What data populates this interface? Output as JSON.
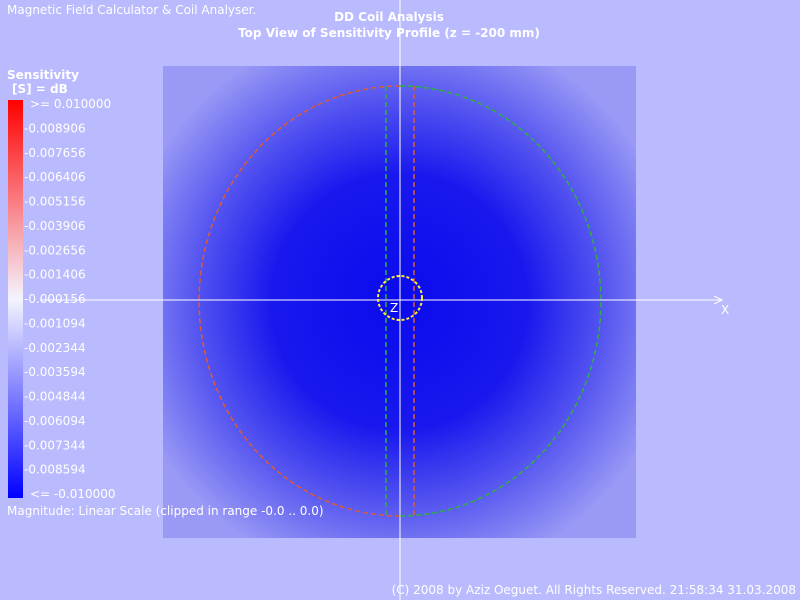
{
  "header": {
    "app_name": "Magnetic Field Calculator & Coil Analyser.",
    "title": "DD Coil Analysis",
    "subtitle": "Top View of Sensitivity Profile (z = -200 mm)"
  },
  "legend": {
    "title": "Sensitivity",
    "unit": "[S] = dB",
    "labels": [
      ">= 0.010000",
      "-0.008906",
      "-0.007656",
      "-0.006406",
      "-0.005156",
      "-0.003906",
      "-0.002656",
      "-0.001406",
      "-0.000156",
      "-0.001094",
      "-0.002344",
      "-0.003594",
      "-0.004844",
      "-0.006094",
      "-0.007344",
      "-0.008594",
      "<= -0.010000"
    ]
  },
  "axes": {
    "x_label": "X",
    "z_label": "Z"
  },
  "scale_note": "Magnitude: Linear Scale (clipped in range -0.0  ..  0.0)",
  "footer": "(C) 2008 by Aziz Oeguet. All Rights Reserved.  21:58:34  31.03.2008"
}
